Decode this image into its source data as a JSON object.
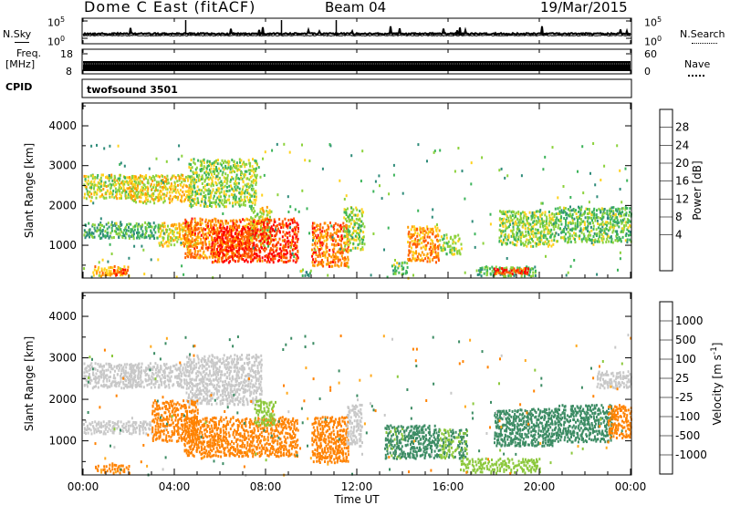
{
  "header": {
    "station": "Dome C East (fitACF)",
    "beam": "Beam 04",
    "date": "19/Mar/2015"
  },
  "top_panels": {
    "nsky_label": "N.Sky",
    "nsearch_label": "N.Search",
    "nsky_ticks": [
      "10^5",
      "10^0"
    ],
    "nsearch_ticks": [
      "10^5",
      "10^0"
    ],
    "freq_label": "Freq.",
    "freq_unit": "[MHz]",
    "freq_ticks": [
      "18",
      "8"
    ],
    "nave_label": "Nave",
    "nave_ticks": [
      "60",
      "0"
    ],
    "cpid_label": "CPID",
    "cpid_value": "twofsound 3501"
  },
  "chart_data": [
    {
      "type": "heatmap",
      "panel": "power",
      "ylabel": "Slant Range [km]",
      "yticks": [
        1000,
        2000,
        3000,
        4000
      ],
      "ylim": [
        200,
        4550
      ],
      "xlim": [
        0,
        24
      ],
      "colorbar": {
        "label": "Power [dB]",
        "ticks": [
          "28",
          "24",
          "20",
          "16",
          "12",
          "8",
          "4"
        ],
        "colors": [
          "#ff0000",
          "#ff5a00",
          "#ff9900",
          "#ffd21e",
          "#8cd23c",
          "#3cb45a",
          "#2f8c7a",
          "#1e50b4",
          "#0000ff"
        ]
      },
      "regions": [
        {
          "t0": 0.0,
          "t1": 2.4,
          "r0": 2200,
          "r1": 2800,
          "level": 16
        },
        {
          "t0": 2.0,
          "t1": 4.8,
          "r0": 2100,
          "r1": 2800,
          "level": 18
        },
        {
          "t0": 4.6,
          "t1": 7.6,
          "r0": 2000,
          "r1": 3200,
          "level": 14
        },
        {
          "t0": 0.0,
          "t1": 3.3,
          "r0": 1200,
          "r1": 1600,
          "level": 10
        },
        {
          "t0": 3.3,
          "t1": 5.0,
          "r0": 1000,
          "r1": 1600,
          "level": 18
        },
        {
          "t0": 4.4,
          "t1": 7.4,
          "r0": 700,
          "r1": 1700,
          "level": 24
        },
        {
          "t0": 5.6,
          "t1": 7.4,
          "r0": 600,
          "r1": 1500,
          "level": 28
        },
        {
          "t0": 7.3,
          "t1": 8.2,
          "r0": 1100,
          "r1": 2000,
          "level": 16
        },
        {
          "t0": 7.4,
          "t1": 9.4,
          "r0": 600,
          "r1": 1700,
          "level": 28
        },
        {
          "t0": 10.0,
          "t1": 11.6,
          "r0": 500,
          "r1": 1600,
          "level": 24
        },
        {
          "t0": 11.4,
          "t1": 12.3,
          "r0": 900,
          "r1": 2000,
          "level": 14
        },
        {
          "t0": 14.2,
          "t1": 15.6,
          "r0": 600,
          "r1": 1500,
          "level": 22
        },
        {
          "t0": 15.6,
          "t1": 16.6,
          "r0": 800,
          "r1": 1300,
          "level": 14
        },
        {
          "t0": 18.2,
          "t1": 20.6,
          "r0": 1000,
          "r1": 1900,
          "level": 14
        },
        {
          "t0": 20.6,
          "t1": 24.0,
          "r0": 1100,
          "r1": 2000,
          "level": 12
        },
        {
          "t0": 17.2,
          "t1": 19.8,
          "r0": 250,
          "r1": 500,
          "level": 10
        },
        {
          "t0": 0.4,
          "t1": 2.0,
          "r0": 250,
          "r1": 500,
          "level": 20
        },
        {
          "t0": 18.0,
          "t1": 19.5,
          "r0": 300,
          "r1": 450,
          "level": 28
        },
        {
          "t0": 1.3,
          "t1": 1.9,
          "r0": 280,
          "r1": 420,
          "level": 28
        },
        {
          "t0": 9.5,
          "t1": 10.0,
          "r0": 250,
          "r1": 450,
          "level": 8
        },
        {
          "t0": 13.5,
          "t1": 14.2,
          "r0": 300,
          "r1": 600,
          "level": 12
        }
      ]
    },
    {
      "type": "heatmap",
      "panel": "velocity",
      "ylabel": "Slant Range [km]",
      "yticks": [
        1000,
        2000,
        3000,
        4000
      ],
      "ylim": [
        200,
        4550
      ],
      "xlim": [
        0,
        24
      ],
      "xticks": [
        "00:00",
        "04:00",
        "08:00",
        "12:00",
        "16:00",
        "20:00",
        "00:00"
      ],
      "xlabel": "Time UT",
      "colorbar": {
        "label": "Velocity [m s^-1]",
        "ticks": [
          "1000",
          "500",
          "100",
          "25",
          "-25",
          "-100",
          "-500",
          "-1000"
        ],
        "colors": [
          "#1e3ca0",
          "#2878b4",
          "#3c8c64",
          "#8cc83c",
          "#c8c8c8",
          "#ffaa1e",
          "#ff8200",
          "#ff5000",
          "#ff0000"
        ]
      },
      "regions": [
        {
          "t0": 0.0,
          "t1": 2.4,
          "r0": 2300,
          "r1": 2900,
          "level": 0
        },
        {
          "t0": 2.0,
          "t1": 4.5,
          "r0": 2300,
          "r1": 2900,
          "level": 0
        },
        {
          "t0": 4.5,
          "t1": 7.8,
          "r0": 1900,
          "r1": 3100,
          "level": 0
        },
        {
          "t0": 0.0,
          "t1": 3.0,
          "r0": 1200,
          "r1": 1500,
          "level": 0
        },
        {
          "t0": 3.0,
          "t1": 5.0,
          "r0": 1000,
          "r1": 2000,
          "level": -200
        },
        {
          "t0": 4.4,
          "t1": 9.4,
          "r0": 650,
          "r1": 1600,
          "level": -300
        },
        {
          "t0": 7.5,
          "t1": 8.4,
          "r0": 1400,
          "r1": 2000,
          "level": 60
        },
        {
          "t0": 10.0,
          "t1": 11.6,
          "r0": 500,
          "r1": 1600,
          "level": -250
        },
        {
          "t0": 11.5,
          "t1": 12.2,
          "r0": 900,
          "r1": 1900,
          "level": 0
        },
        {
          "t0": 13.2,
          "t1": 14.2,
          "r0": 600,
          "r1": 1400,
          "level": 150
        },
        {
          "t0": 14.2,
          "t1": 15.6,
          "r0": 600,
          "r1": 1400,
          "level": 300
        },
        {
          "t0": 15.6,
          "t1": 16.8,
          "r0": 600,
          "r1": 1300,
          "level": 100
        },
        {
          "t0": 18.0,
          "t1": 20.6,
          "r0": 900,
          "r1": 1800,
          "level": 300
        },
        {
          "t0": 20.6,
          "t1": 23.2,
          "r0": 1000,
          "r1": 1900,
          "level": 300
        },
        {
          "t0": 23.0,
          "t1": 24.0,
          "r0": 1100,
          "r1": 1900,
          "level": -250
        },
        {
          "t0": 16.5,
          "t1": 20.0,
          "r0": 250,
          "r1": 600,
          "level": 60
        },
        {
          "t0": 0.5,
          "t1": 2.0,
          "r0": 250,
          "r1": 450,
          "level": -150
        },
        {
          "t0": 22.5,
          "t1": 24.0,
          "r0": 2300,
          "r1": 2700,
          "level": 0
        }
      ]
    }
  ]
}
